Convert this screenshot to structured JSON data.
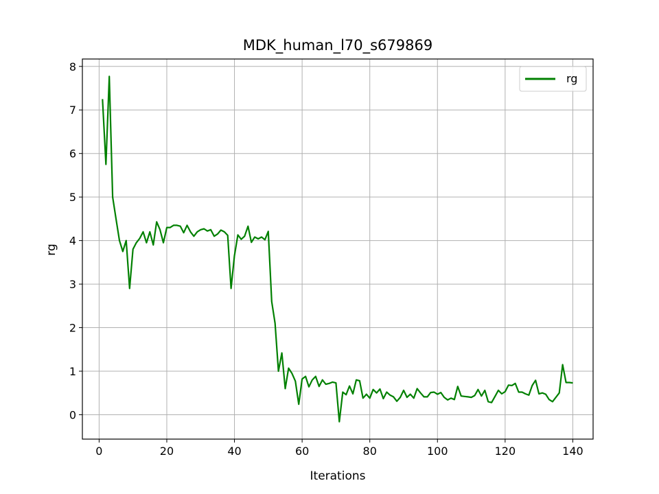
{
  "chart_data": {
    "type": "line",
    "title": "MDK_human_l70_s679869",
    "xlabel": "Iterations",
    "ylabel": "rg",
    "xlim": [
      -4.95,
      146
    ],
    "ylim": [
      -0.56,
      8.17
    ],
    "xticks": [
      0,
      20,
      40,
      60,
      80,
      100,
      120,
      140
    ],
    "yticks": [
      0,
      1,
      2,
      3,
      4,
      5,
      6,
      7,
      8
    ],
    "grid": true,
    "legend_position": "top-right",
    "series": [
      {
        "name": "rg",
        "color": "#008000",
        "x": [
          1,
          2,
          3,
          4,
          5,
          6,
          7,
          8,
          9,
          10,
          11,
          12,
          13,
          14,
          15,
          16,
          17,
          18,
          19,
          20,
          21,
          22,
          23,
          24,
          25,
          26,
          27,
          28,
          29,
          30,
          31,
          32,
          33,
          34,
          35,
          36,
          37,
          38,
          39,
          40,
          41,
          42,
          43,
          44,
          45,
          46,
          47,
          48,
          49,
          50,
          51,
          52,
          53,
          54,
          55,
          56,
          57,
          58,
          59,
          60,
          61,
          62,
          63,
          64,
          65,
          66,
          67,
          68,
          69,
          70,
          71,
          72,
          73,
          74,
          75,
          76,
          77,
          78,
          79,
          80,
          81,
          82,
          83,
          84,
          85,
          86,
          87,
          88,
          89,
          90,
          91,
          92,
          93,
          94,
          95,
          96,
          97,
          98,
          99,
          100,
          101,
          102,
          103,
          104,
          105,
          106,
          107,
          108,
          109,
          110,
          111,
          112,
          113,
          114,
          115,
          116,
          117,
          118,
          119,
          120,
          121,
          122,
          123,
          124,
          125,
          126,
          127,
          128,
          129,
          130,
          131,
          132,
          133,
          134,
          135,
          136,
          137,
          138,
          139,
          140
        ],
        "y": [
          7.25,
          5.75,
          7.77,
          5.0,
          4.5,
          4.0,
          3.75,
          4.0,
          2.9,
          3.8,
          3.95,
          4.05,
          4.2,
          3.95,
          4.2,
          3.9,
          4.43,
          4.25,
          3.95,
          4.3,
          4.3,
          4.35,
          4.35,
          4.33,
          4.18,
          4.35,
          4.2,
          4.1,
          4.2,
          4.25,
          4.27,
          4.22,
          4.25,
          4.1,
          4.15,
          4.24,
          4.2,
          4.12,
          2.9,
          3.65,
          4.13,
          4.03,
          4.1,
          4.33,
          3.96,
          4.08,
          4.04,
          4.08,
          4.02,
          4.21,
          2.6,
          2.1,
          1.0,
          1.42,
          0.6,
          1.07,
          0.95,
          0.77,
          0.24,
          0.82,
          0.88,
          0.64,
          0.8,
          0.88,
          0.65,
          0.8,
          0.7,
          0.72,
          0.75,
          0.73,
          -0.16,
          0.52,
          0.46,
          0.66,
          0.48,
          0.8,
          0.78,
          0.38,
          0.47,
          0.38,
          0.58,
          0.5,
          0.59,
          0.37,
          0.52,
          0.45,
          0.41,
          0.31,
          0.4,
          0.56,
          0.4,
          0.47,
          0.38,
          0.6,
          0.5,
          0.41,
          0.41,
          0.51,
          0.52,
          0.47,
          0.51,
          0.4,
          0.34,
          0.38,
          0.35,
          0.65,
          0.43,
          0.42,
          0.41,
          0.4,
          0.44,
          0.58,
          0.43,
          0.56,
          0.3,
          0.28,
          0.42,
          0.56,
          0.48,
          0.53,
          0.68,
          0.67,
          0.72,
          0.52,
          0.52,
          0.48,
          0.45,
          0.67,
          0.79,
          0.48,
          0.5,
          0.47,
          0.35,
          0.3,
          0.4,
          0.5,
          1.15,
          0.74,
          0.74,
          0.73
        ]
      }
    ]
  }
}
